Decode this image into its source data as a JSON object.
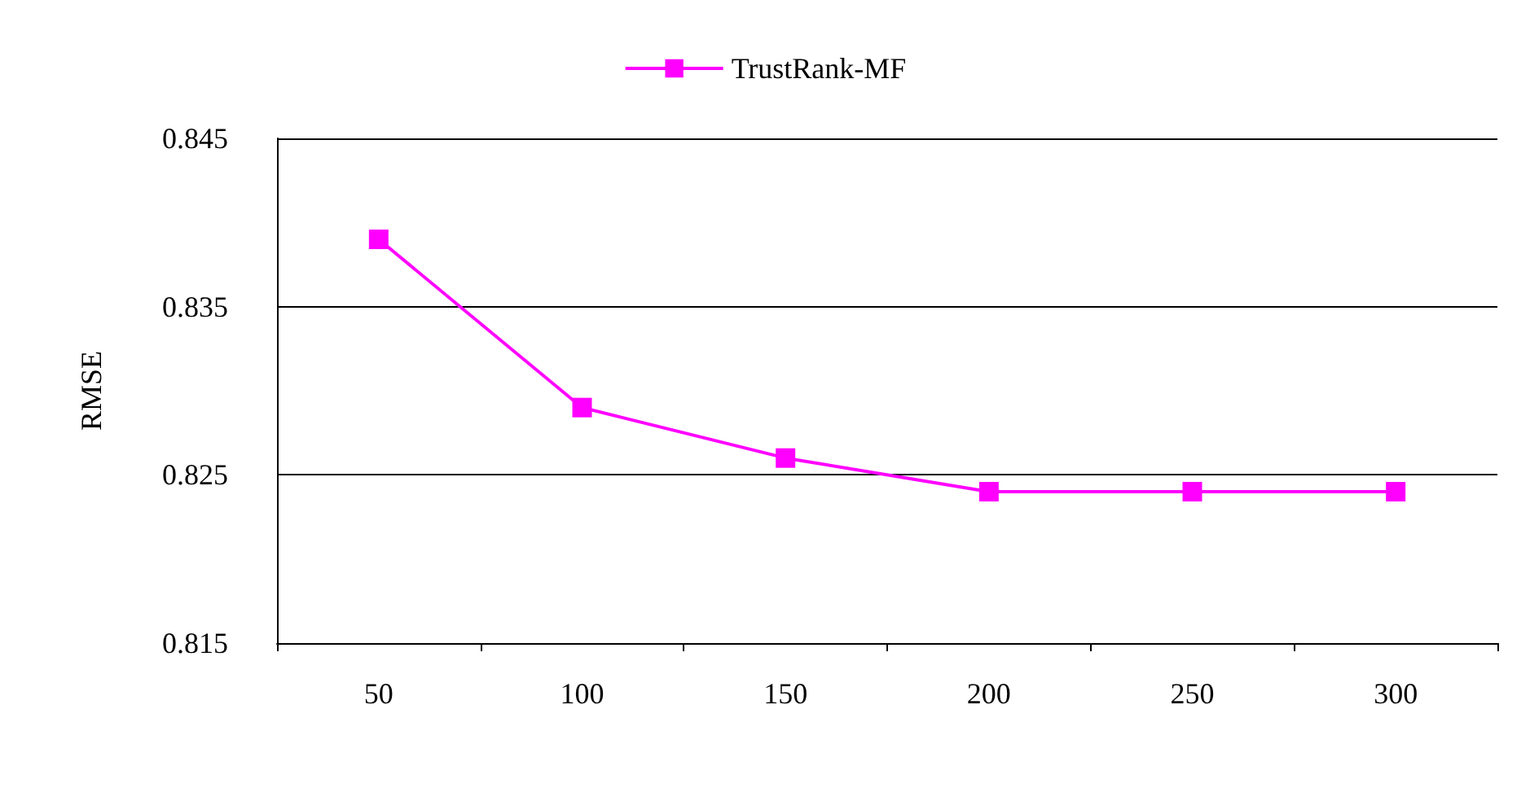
{
  "chart_data": {
    "type": "line",
    "ylabel": "RMSE",
    "categories": [
      "50",
      "100",
      "150",
      "200",
      "250",
      "300"
    ],
    "series": [
      {
        "name": "TrustRank-MF",
        "color": "#ff00ff",
        "values": [
          0.839,
          0.829,
          0.826,
          0.824,
          0.824,
          0.824
        ]
      }
    ],
    "ylim": [
      0.815,
      0.845
    ],
    "yticks": [
      0.815,
      0.825,
      0.835,
      0.845
    ],
    "grid": "y",
    "legend": "top",
    "marker": "square",
    "line_style": "solid"
  }
}
